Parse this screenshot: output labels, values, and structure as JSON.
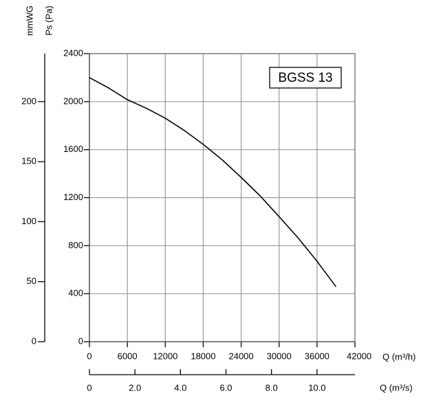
{
  "chart_data": {
    "type": "line",
    "annotation": "BGSS 13",
    "y_label": "Ps (Pa)",
    "y2_label": "mmWG",
    "x_label": "Q (m³/h)",
    "x2_label": "Q (m³/s)",
    "x": [
      0,
      3000,
      6000,
      9000,
      12000,
      15000,
      18000,
      21000,
      24000,
      27000,
      30000,
      33000,
      36000,
      39000
    ],
    "series": [
      {
        "name": "BGSS 13",
        "color": "#000000",
        "values": [
          2200,
          2115,
          2016,
          1945,
          1862,
          1760,
          1644,
          1515,
          1369,
          1215,
          1042,
          865,
          670,
          458
        ]
      }
    ],
    "xlim": [
      0,
      42000
    ],
    "xticks": [
      0,
      6000,
      12000,
      18000,
      24000,
      30000,
      36000,
      42000
    ],
    "ylim": [
      0,
      2400
    ],
    "yticks": [
      0,
      400,
      800,
      1200,
      1600,
      2000,
      2400
    ],
    "y2lim": [
      0,
      240
    ],
    "y2ticks": [
      0,
      50,
      100,
      150,
      200
    ],
    "x2lim": [
      0,
      11.667
    ],
    "x2ticks": [
      0,
      {
        "value": 2,
        "label": "2.0"
      },
      {
        "value": 4,
        "label": "4.0"
      },
      {
        "value": 6,
        "label": "6.0"
      },
      {
        "value": 8,
        "label": "8.0"
      },
      {
        "value": 10,
        "label": "10.0"
      }
    ],
    "grid": true
  }
}
